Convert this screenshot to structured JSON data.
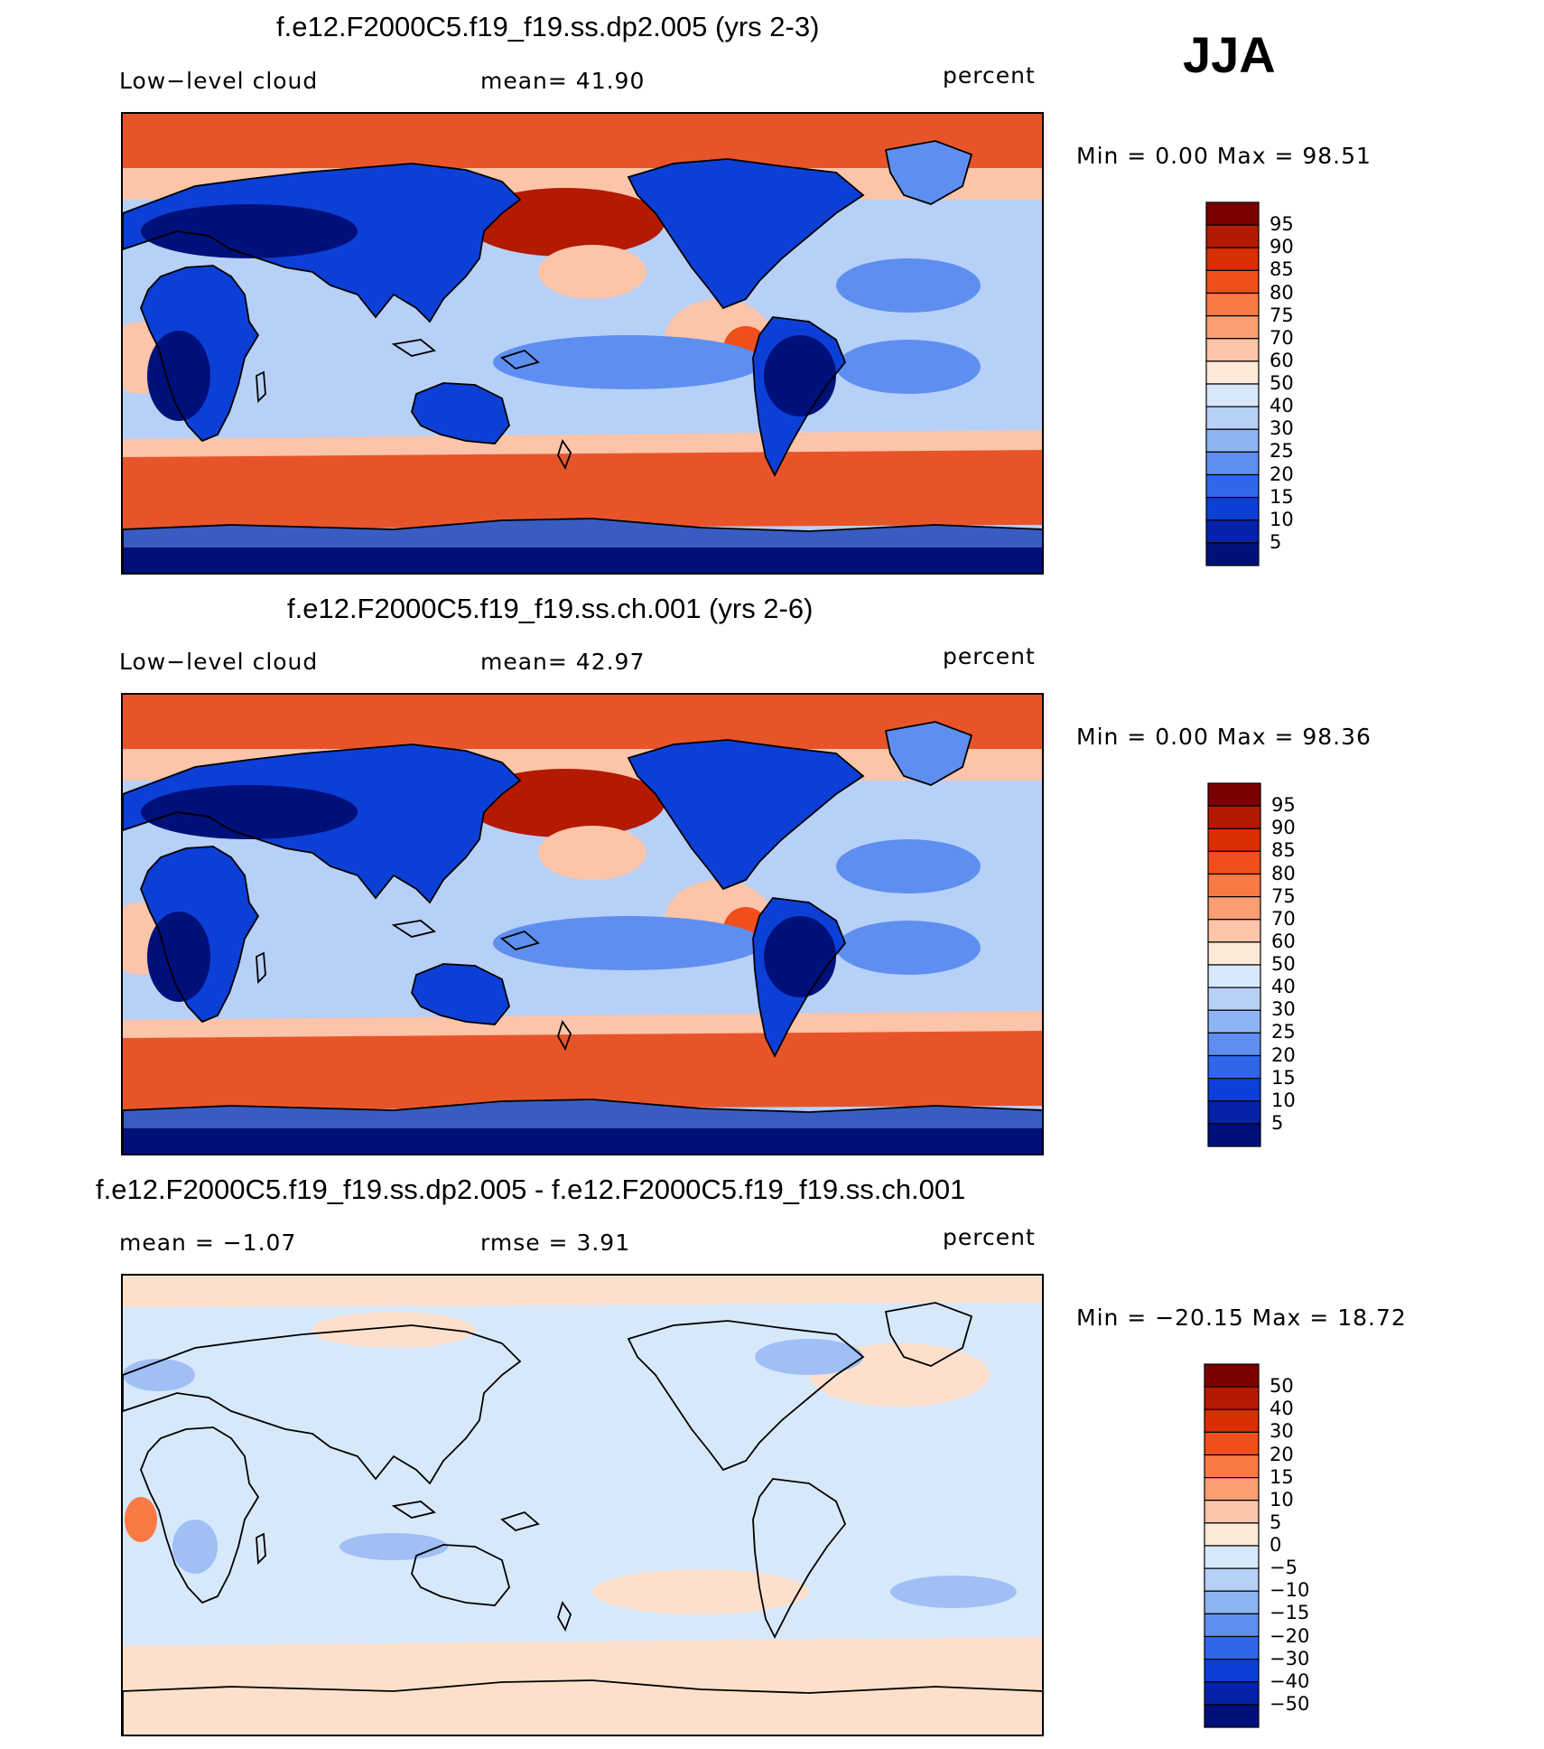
{
  "season": "JJA",
  "panels": [
    {
      "title": "f.e12.F2000C5.f19_f19.ss.dp2.005 (yrs 2-3)",
      "left_label": "Low−level  cloud",
      "center_label": "mean=   41.90",
      "units": "percent",
      "minmax": "Min  =     0.00  Max  =    98.51",
      "map_kind": "field",
      "colorbar": "cb1"
    },
    {
      "title": "f.e12.F2000C5.f19_f19.ss.ch.001 (yrs 2-6)",
      "left_label": "Low−level  cloud",
      "center_label": "mean=   42.97",
      "units": "percent",
      "minmax": "Min  =     0.00  Max  =    98.36",
      "map_kind": "field",
      "colorbar": "cb2"
    },
    {
      "title": "f.e12.F2000C5.f19_f19.ss.dp2.005 - f.e12.F2000C5.f19_f19.ss.ch.001",
      "left_label": "mean  =    −1.07",
      "center_label": "rmse  =     3.91",
      "units": "percent",
      "minmax": "Min  =  −20.15  Max  =    18.72",
      "map_kind": "diff",
      "colorbar": "cb3"
    }
  ],
  "colorbars": {
    "cb1": {
      "labels": [
        "95",
        "90",
        "85",
        "80",
        "75",
        "70",
        "60",
        "50",
        "40",
        "30",
        "25",
        "20",
        "15",
        "10",
        "5"
      ],
      "colors": [
        "#7a0000",
        "#b31a00",
        "#d92e00",
        "#f04e1a",
        "#fa7a45",
        "#fb9e72",
        "#fcc4a8",
        "#fde9d8",
        "#d8e8fb",
        "#b7d0f7",
        "#8db4f4",
        "#5e8ff0",
        "#2f66ea",
        "#0c3fd6",
        "#0522a8",
        "#00107a"
      ]
    },
    "cb2": {
      "labels": [
        "95",
        "90",
        "85",
        "80",
        "75",
        "70",
        "60",
        "50",
        "40",
        "30",
        "25",
        "20",
        "15",
        "10",
        "5"
      ],
      "colors": [
        "#7a0000",
        "#b31a00",
        "#d92e00",
        "#f04e1a",
        "#fa7a45",
        "#fb9e72",
        "#fcc4a8",
        "#fde9d8",
        "#d8e8fb",
        "#b7d0f7",
        "#8db4f4",
        "#5e8ff0",
        "#2f66ea",
        "#0c3fd6",
        "#0522a8",
        "#00107a"
      ]
    },
    "cb3": {
      "labels": [
        "50",
        "40",
        "30",
        "20",
        "15",
        "10",
        "5",
        "0",
        "−5",
        "−10",
        "−15",
        "−20",
        "−30",
        "−40",
        "−50"
      ],
      "colors": [
        "#7a0000",
        "#b31a00",
        "#d92e00",
        "#f04e1a",
        "#fa7a45",
        "#fb9e72",
        "#fcc4a8",
        "#fde9d8",
        "#d8e8fb",
        "#b7d0f7",
        "#8db4f4",
        "#5e8ff0",
        "#2f66ea",
        "#0c3fd6",
        "#0522a8",
        "#00107a"
      ]
    }
  },
  "map_palette": {
    "ocean_high": "#e8542a",
    "ocean_mid": "#fcc4a8",
    "ocean_low": "#b7d0f7",
    "land_low": "#0c3fd6",
    "land_deep": "#00107a",
    "diff_bg": "#d8e8fb",
    "diff_pos": "#fde0cc",
    "diff_neg": "#9fbff5",
    "coast": "#000000"
  }
}
